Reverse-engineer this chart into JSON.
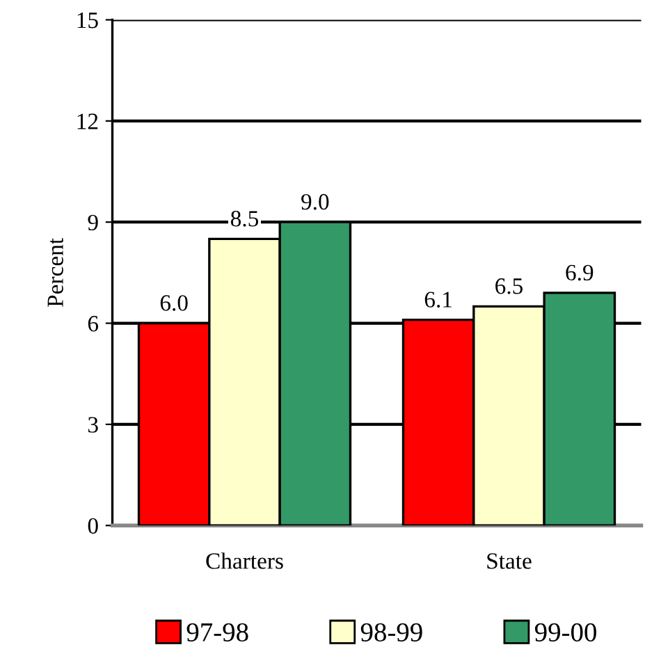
{
  "chart_data": {
    "type": "bar",
    "ylabel": "Percent",
    "categories": [
      "Charters",
      "State"
    ],
    "series": [
      {
        "name": "97-98",
        "color": "#ff0000",
        "values": [
          6.0,
          6.1
        ],
        "value_labels": [
          "6.0",
          "6.1"
        ]
      },
      {
        "name": "98-99",
        "color": "#ffffcc",
        "values": [
          8.5,
          6.5
        ],
        "value_labels": [
          "8.5",
          "6.5"
        ]
      },
      {
        "name": "99-00",
        "color": "#339966",
        "values": [
          9.0,
          6.9
        ],
        "value_labels": [
          "9.0",
          "6.9"
        ]
      }
    ],
    "ylim": [
      0,
      15
    ],
    "yticks": [
      0,
      3,
      6,
      9,
      12,
      15
    ],
    "grid": "y",
    "legend": "bottom"
  }
}
